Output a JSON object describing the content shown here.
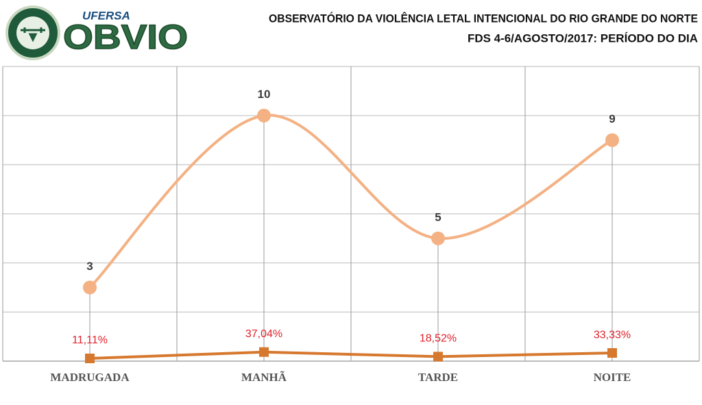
{
  "logo": {
    "org": "UFERSA",
    "name": "OBVIO"
  },
  "chart_data": {
    "type": "line",
    "title": "OBSERVATÓRIO DA VIOLÊNCIA LETAL INTENCIONAL DO RIO GRANDE DO NORTE",
    "subtitle": "FDS 4-6/AGOSTO/2017:  PERÍODO DO DIA",
    "categories": [
      "MADRUGADA",
      "MANHÃ",
      "TARDE",
      "NOITE"
    ],
    "series": [
      {
        "color": "#f4b183",
        "smooth": true,
        "marker": "circle",
        "label_color": "#3a3a3a",
        "values": [
          3,
          10,
          5,
          9
        ]
      },
      {
        "color": "#d6782e",
        "smooth": false,
        "marker": "square",
        "label_color": "#e0202a",
        "values": [
          0.1111,
          0.3704,
          0.1852,
          0.3333
        ],
        "value_labels": [
          "11,11%",
          "37,04%",
          "18,52%",
          "33,33%"
        ]
      }
    ],
    "ylim": [
      0,
      12
    ],
    "yticks": [
      0,
      2,
      4,
      6,
      8,
      10,
      12
    ],
    "grid": true
  }
}
